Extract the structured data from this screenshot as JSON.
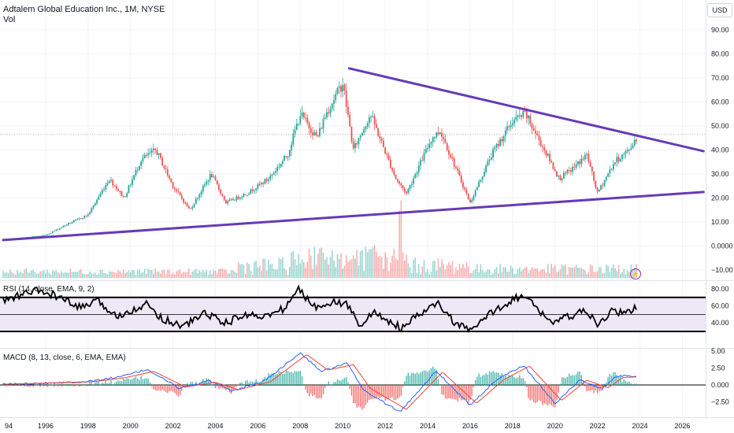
{
  "header": {
    "title": "Adtalem Global Education Inc., 1M, NYSE",
    "volume_label": "Vol",
    "currency": "USD"
  },
  "indicators": {
    "rsi_label": "RSI (14, close, EMA, 9, 2)",
    "macd_label": "MACD (8, 13, close, 6, EMA, EMA)"
  },
  "colors": {
    "up": "#26a69a",
    "down": "#ef5350",
    "trendline": "#673ab7",
    "rsi_line": "#000000",
    "rsi_band": "#ede7f6",
    "macd_line": "#2962ff",
    "signal_line": "#f44336",
    "grid": "#f0f3fa"
  },
  "chart_data": [
    {
      "type": "candlestick",
      "title": "Adtalem Global Education Inc., 1M, NYSE",
      "x_ticks": [
        "94",
        "1996",
        "1998",
        "2000",
        "2002",
        "2004",
        "2006",
        "2008",
        "2010",
        "2012",
        "2014",
        "2016",
        "2018",
        "2020",
        "2022",
        "2024",
        "2026"
      ],
      "y_ticks": [
        "90.00",
        "80.00",
        "70.00",
        "60.00",
        "50.00",
        "40.00",
        "30.00",
        "20.00",
        "10.00",
        "0.0000",
        "−10.00"
      ],
      "ylim": [
        -10,
        95
      ],
      "price_path": [
        {
          "year": 1994.0,
          "price": 2.5
        },
        {
          "year": 1996.0,
          "price": 4.5
        },
        {
          "year": 1997.0,
          "price": 9.0
        },
        {
          "year": 1998.0,
          "price": 13.0
        },
        {
          "year": 1999.0,
          "price": 28.0
        },
        {
          "year": 1999.7,
          "price": 20.0
        },
        {
          "year": 2000.5,
          "price": 36.0
        },
        {
          "year": 2001.2,
          "price": 40.0
        },
        {
          "year": 2002.0,
          "price": 25.0
        },
        {
          "year": 2002.8,
          "price": 15.0
        },
        {
          "year": 2003.8,
          "price": 30.0
        },
        {
          "year": 2004.5,
          "price": 18.0
        },
        {
          "year": 2005.5,
          "price": 22.0
        },
        {
          "year": 2006.5,
          "price": 28.0
        },
        {
          "year": 2007.4,
          "price": 38.0
        },
        {
          "year": 2008.0,
          "price": 55.0
        },
        {
          "year": 2008.8,
          "price": 45.0
        },
        {
          "year": 2009.2,
          "price": 55.0
        },
        {
          "year": 2010.0,
          "price": 68.0
        },
        {
          "year": 2010.5,
          "price": 40.0
        },
        {
          "year": 2011.3,
          "price": 55.0
        },
        {
          "year": 2012.5,
          "price": 28.0
        },
        {
          "year": 2013.0,
          "price": 22.0
        },
        {
          "year": 2014.2,
          "price": 45.0
        },
        {
          "year": 2014.6,
          "price": 48.0
        },
        {
          "year": 2016.0,
          "price": 18.0
        },
        {
          "year": 2017.0,
          "price": 38.0
        },
        {
          "year": 2018.0,
          "price": 52.0
        },
        {
          "year": 2018.6,
          "price": 55.0
        },
        {
          "year": 2019.5,
          "price": 40.0
        },
        {
          "year": 2020.2,
          "price": 28.0
        },
        {
          "year": 2020.8,
          "price": 32.0
        },
        {
          "year": 2021.5,
          "price": 38.0
        },
        {
          "year": 2022.0,
          "price": 22.0
        },
        {
          "year": 2022.8,
          "price": 35.0
        },
        {
          "year": 2023.5,
          "price": 40.0
        },
        {
          "year": 2023.8,
          "price": 45.0
        }
      ],
      "trendlines": [
        {
          "label": "upper",
          "from": {
            "year": 2010.3,
            "price": 74.0
          },
          "to": {
            "year": 2027.0,
            "price": 39.5
          }
        },
        {
          "label": "lower",
          "from": {
            "year": 1994.0,
            "price": 2.5
          },
          "to": {
            "year": 2027.0,
            "price": 22.5
          }
        }
      ],
      "current_price_level": 46.5
    },
    {
      "type": "line",
      "title": "RSI (14, close, EMA, 9, 2)",
      "y_ticks": [
        "80.00",
        "60.00",
        "40.00"
      ],
      "ylim": [
        25,
        90
      ],
      "bands": [
        70,
        50,
        30
      ],
      "series": [
        {
          "values": [
            {
              "year": 1994.0,
              "rsi": 66
            },
            {
              "year": 1995.5,
              "rsi": 78
            },
            {
              "year": 1996.5,
              "rsi": 72
            },
            {
              "year": 1997.5,
              "rsi": 58
            },
            {
              "year": 1998.5,
              "rsi": 65
            },
            {
              "year": 1999.3,
              "rsi": 48
            },
            {
              "year": 2000.0,
              "rsi": 55
            },
            {
              "year": 2000.8,
              "rsi": 62
            },
            {
              "year": 2001.5,
              "rsi": 45
            },
            {
              "year": 2002.5,
              "rsi": 36
            },
            {
              "year": 2003.5,
              "rsi": 52
            },
            {
              "year": 2004.5,
              "rsi": 40
            },
            {
              "year": 2005.5,
              "rsi": 50
            },
            {
              "year": 2006.5,
              "rsi": 48
            },
            {
              "year": 2007.3,
              "rsi": 58
            },
            {
              "year": 2007.9,
              "rsi": 80
            },
            {
              "year": 2008.7,
              "rsi": 58
            },
            {
              "year": 2009.3,
              "rsi": 65
            },
            {
              "year": 2010.2,
              "rsi": 62
            },
            {
              "year": 2010.8,
              "rsi": 38
            },
            {
              "year": 2011.5,
              "rsi": 52
            },
            {
              "year": 2012.8,
              "rsi": 33
            },
            {
              "year": 2013.5,
              "rsi": 48
            },
            {
              "year": 2014.5,
              "rsi": 63
            },
            {
              "year": 2015.2,
              "rsi": 42
            },
            {
              "year": 2016.0,
              "rsi": 30
            },
            {
              "year": 2017.0,
              "rsi": 52
            },
            {
              "year": 2018.0,
              "rsi": 68
            },
            {
              "year": 2018.5,
              "rsi": 72
            },
            {
              "year": 2019.2,
              "rsi": 56
            },
            {
              "year": 2019.9,
              "rsi": 40
            },
            {
              "year": 2020.7,
              "rsi": 48
            },
            {
              "year": 2021.5,
              "rsi": 54
            },
            {
              "year": 2022.0,
              "rsi": 36
            },
            {
              "year": 2022.7,
              "rsi": 55
            },
            {
              "year": 2023.3,
              "rsi": 50
            },
            {
              "year": 2023.9,
              "rsi": 60
            }
          ]
        }
      ]
    },
    {
      "type": "line",
      "title": "MACD (8, 13, close, 6, EMA, EMA)",
      "y_ticks": [
        "5.00",
        "2.50",
        "0.000",
        "−2.50"
      ],
      "ylim": [
        -4.2,
        6.8
      ],
      "series": [
        {
          "role": "macd",
          "values": [
            {
              "year": 1994.0,
              "v": 0.1
            },
            {
              "year": 1998.0,
              "v": 0.5
            },
            {
              "year": 1999.5,
              "v": 1.2
            },
            {
              "year": 2000.8,
              "v": 2.3
            },
            {
              "year": 2002.3,
              "v": -0.5
            },
            {
              "year": 2003.7,
              "v": 0.6
            },
            {
              "year": 2004.8,
              "v": -0.9
            },
            {
              "year": 2006.3,
              "v": 0.6
            },
            {
              "year": 2008.0,
              "v": 4.7
            },
            {
              "year": 2009.0,
              "v": 2.0
            },
            {
              "year": 2010.2,
              "v": 3.2
            },
            {
              "year": 2011.0,
              "v": -0.8
            },
            {
              "year": 2012.7,
              "v": -4.0
            },
            {
              "year": 2014.4,
              "v": 2.1
            },
            {
              "year": 2016.0,
              "v": -3.0
            },
            {
              "year": 2017.3,
              "v": 0.9
            },
            {
              "year": 2018.5,
              "v": 2.9
            },
            {
              "year": 2020.0,
              "v": -2.7
            },
            {
              "year": 2021.2,
              "v": 0.8
            },
            {
              "year": 2022.2,
              "v": -0.6
            },
            {
              "year": 2022.9,
              "v": 1.3
            },
            {
              "year": 2023.9,
              "v": 1.4
            }
          ]
        },
        {
          "role": "signal",
          "values": [
            {
              "year": 1994.0,
              "v": 0.1
            },
            {
              "year": 1998.3,
              "v": 0.5
            },
            {
              "year": 1999.8,
              "v": 1.1
            },
            {
              "year": 2001.1,
              "v": 2.0
            },
            {
              "year": 2002.6,
              "v": -0.3
            },
            {
              "year": 2004.0,
              "v": 0.4
            },
            {
              "year": 2005.1,
              "v": -0.7
            },
            {
              "year": 2006.6,
              "v": 0.5
            },
            {
              "year": 2008.3,
              "v": 4.5
            },
            {
              "year": 2009.3,
              "v": 2.2
            },
            {
              "year": 2010.5,
              "v": 3.0
            },
            {
              "year": 2011.3,
              "v": -0.5
            },
            {
              "year": 2013.0,
              "v": -3.6
            },
            {
              "year": 2014.7,
              "v": 1.9
            },
            {
              "year": 2016.3,
              "v": -2.7
            },
            {
              "year": 2017.6,
              "v": 0.8
            },
            {
              "year": 2018.8,
              "v": 2.8
            },
            {
              "year": 2020.3,
              "v": -2.3
            },
            {
              "year": 2021.5,
              "v": 0.7
            },
            {
              "year": 2022.5,
              "v": -0.4
            },
            {
              "year": 2023.2,
              "v": 1.1
            },
            {
              "year": 2023.9,
              "v": 1.2
            }
          ]
        }
      ]
    }
  ]
}
